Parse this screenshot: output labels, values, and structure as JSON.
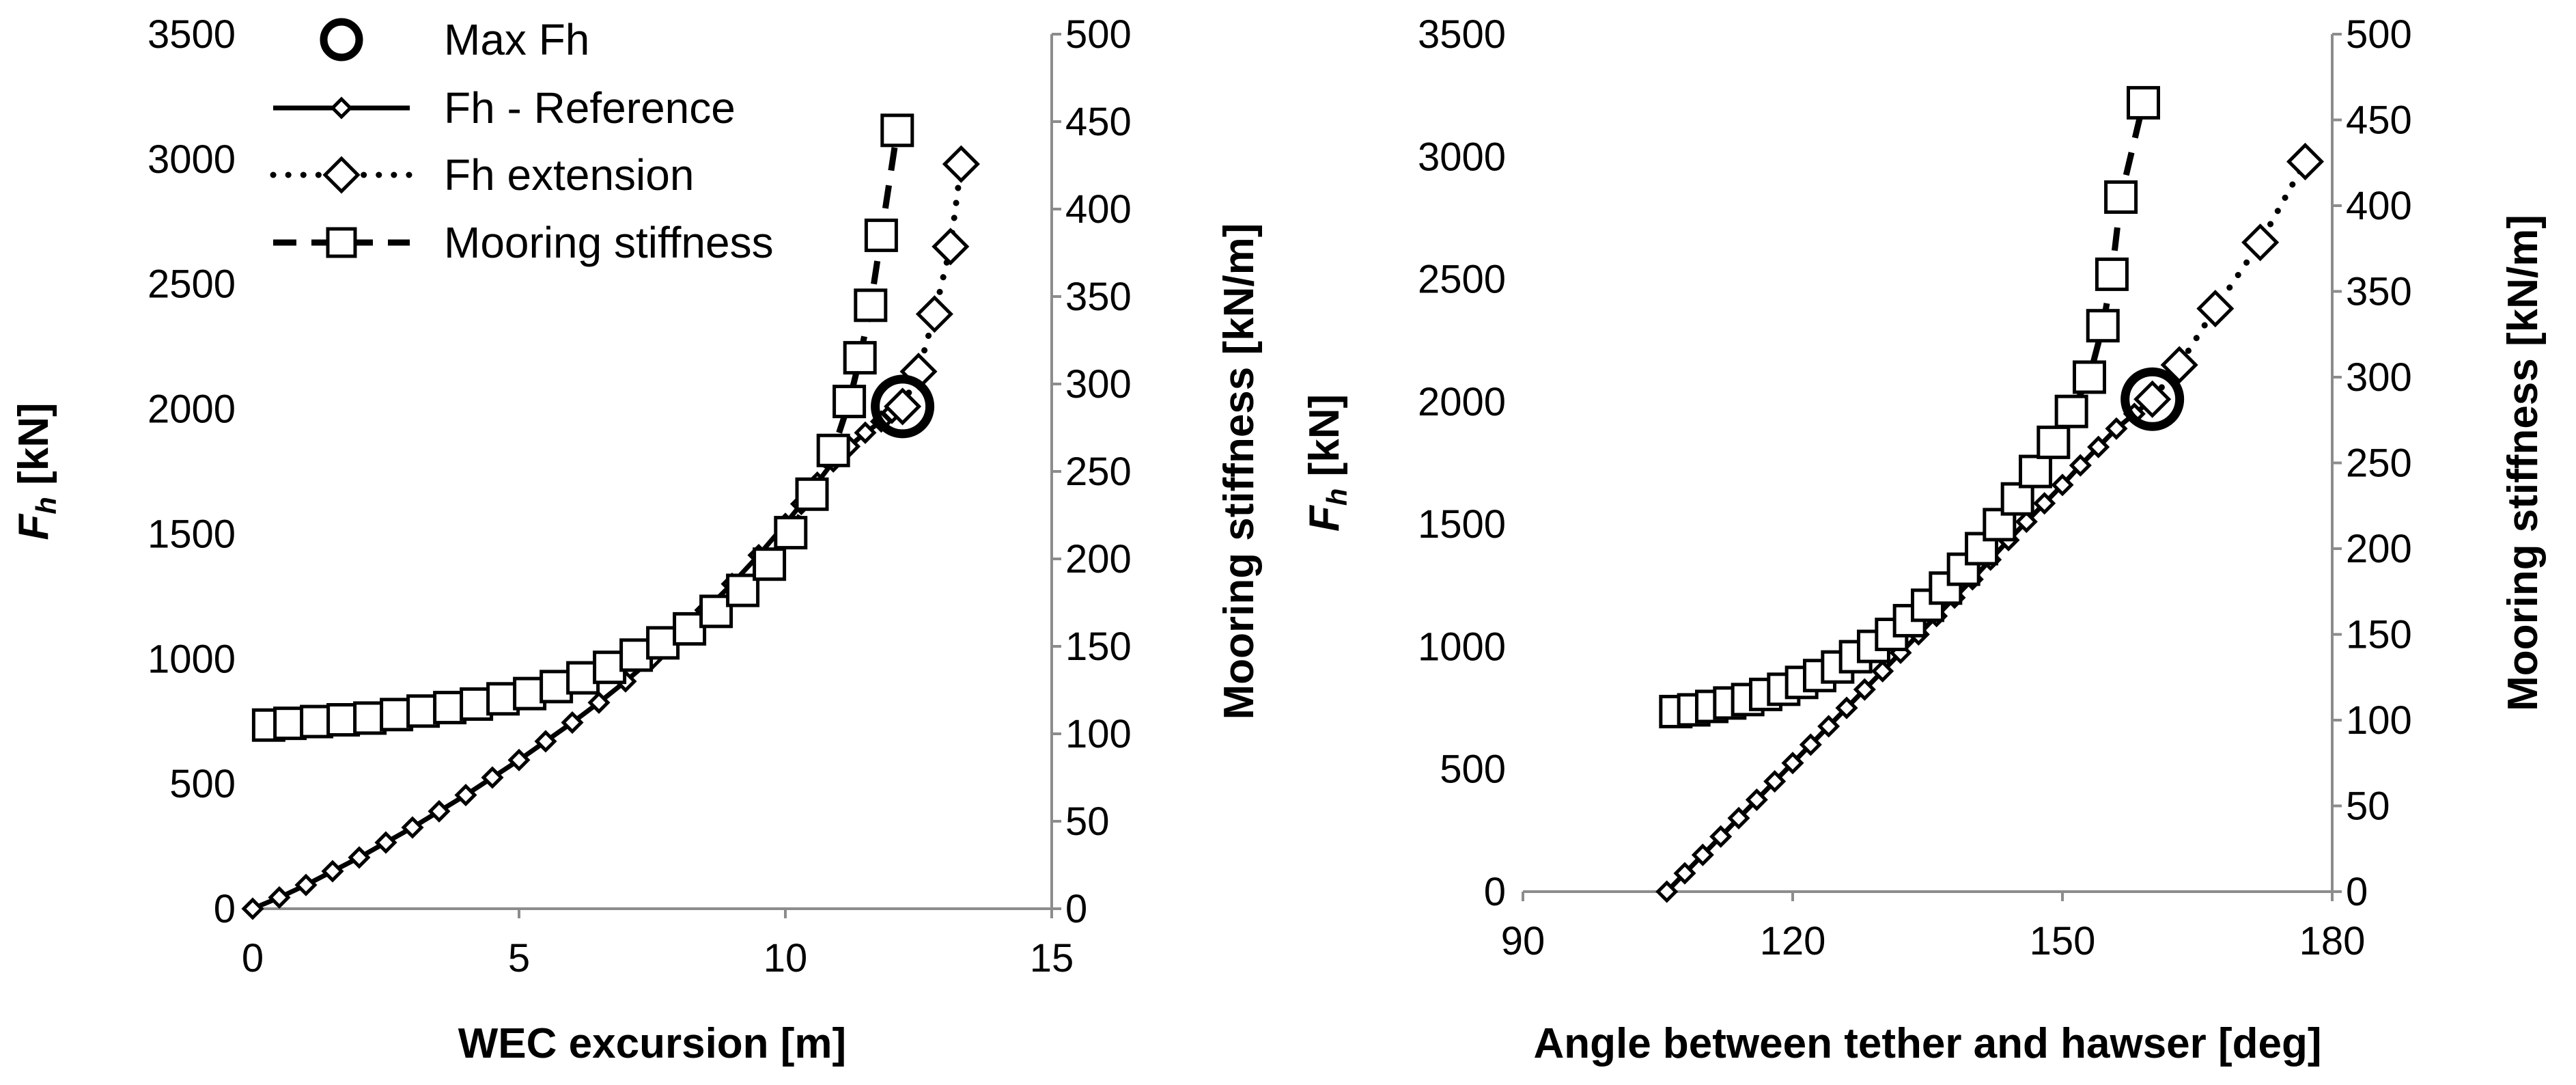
{
  "chart_data": [
    {
      "type": "line",
      "xlabel": "WEC excursion [m]",
      "ylabel": "F",
      "ylabel_sub": "h",
      "ylabel_unit": " [kN]",
      "y2label": "Mooring stiffness [kN/m]",
      "xlim": [
        0,
        15
      ],
      "ylim": [
        0,
        3500
      ],
      "y2lim": [
        0,
        500
      ],
      "xticks": [
        0,
        5,
        10,
        15
      ],
      "yticks": [
        0,
        500,
        1000,
        1500,
        2000,
        2500,
        3000,
        3500
      ],
      "y2ticks": [
        0,
        50,
        100,
        150,
        200,
        250,
        300,
        350,
        400,
        450,
        500
      ],
      "legend": {
        "position": "top-left",
        "entries": [
          "Max Fh",
          "Fh - Reference",
          "Fh extension",
          "Mooring stiffness"
        ]
      },
      "series": [
        {
          "name": "Fh - Reference",
          "axis": "left",
          "x": [
            0,
            0.5,
            1.0,
            1.5,
            2.0,
            2.5,
            3.0,
            3.5,
            4.0,
            4.5,
            5.0,
            5.5,
            6.0,
            6.5,
            7.0,
            7.5,
            8.0,
            8.5,
            9.0,
            9.5,
            10.0,
            10.3,
            10.6,
            10.9,
            11.2,
            11.5,
            11.8,
            12.0,
            12.2
          ],
          "y": [
            0,
            45,
            95,
            150,
            205,
            265,
            325,
            390,
            455,
            525,
            595,
            670,
            745,
            825,
            910,
            1000,
            1095,
            1195,
            1300,
            1415,
            1540,
            1620,
            1705,
            1790,
            1850,
            1905,
            1950,
            1985,
            2010
          ]
        },
        {
          "name": "Fh extension",
          "axis": "left",
          "x": [
            12.2,
            12.5,
            12.8,
            13.1,
            13.3
          ],
          "y": [
            2010,
            2150,
            2380,
            2650,
            2980
          ]
        },
        {
          "name": "Mooring stiffness",
          "axis": "right",
          "x": [
            0.3,
            0.7,
            1.2,
            1.7,
            2.2,
            2.7,
            3.2,
            3.7,
            4.2,
            4.7,
            5.2,
            5.7,
            6.2,
            6.7,
            7.2,
            7.7,
            8.2,
            8.7,
            9.2,
            9.7,
            10.1,
            10.5,
            10.9,
            11.2,
            11.4,
            11.6,
            11.8,
            12.1
          ],
          "y": [
            105,
            106,
            107,
            108,
            109,
            111,
            113,
            115,
            117,
            120,
            123,
            127,
            132,
            138,
            145,
            152,
            160,
            170,
            182,
            197,
            215,
            237,
            262,
            290,
            315,
            345,
            385,
            445
          ]
        },
        {
          "name": "Max Fh",
          "axis": "left",
          "x": [
            12.2
          ],
          "y": [
            2010
          ]
        }
      ]
    },
    {
      "type": "line",
      "xlabel": "Angle between tether and hawser [deg]",
      "ylabel": "F",
      "ylabel_sub": "h",
      "ylabel_unit": " [kN]",
      "y2label": "Mooring stiffness [kN/m]",
      "xlim": [
        90,
        180
      ],
      "ylim": [
        0,
        3500
      ],
      "y2lim": [
        0,
        500
      ],
      "xticks": [
        90,
        120,
        150,
        180
      ],
      "yticks": [
        0,
        500,
        1000,
        1500,
        2000,
        2500,
        3000,
        3500
      ],
      "y2ticks": [
        0,
        50,
        100,
        150,
        200,
        250,
        300,
        350,
        400,
        450,
        500
      ],
      "series": [
        {
          "name": "Fh - Reference",
          "axis": "left",
          "x": [
            106,
            108,
            110,
            112,
            114,
            116,
            118,
            120,
            122,
            124,
            126,
            128,
            130,
            132,
            134,
            136,
            138,
            140,
            142,
            144,
            146,
            148,
            150,
            152,
            154,
            156,
            158,
            160
          ],
          "y": [
            0,
            75,
            150,
            225,
            300,
            375,
            450,
            525,
            600,
            675,
            750,
            825,
            900,
            975,
            1050,
            1125,
            1200,
            1275,
            1355,
            1435,
            1510,
            1585,
            1660,
            1740,
            1815,
            1890,
            1950,
            2010
          ]
        },
        {
          "name": "Fh extension",
          "axis": "left",
          "x": [
            160,
            163,
            167,
            172,
            177
          ],
          "y": [
            2010,
            2150,
            2380,
            2650,
            2980
          ]
        },
        {
          "name": "Mooring stiffness",
          "axis": "right",
          "x": [
            107,
            109,
            111,
            113,
            115,
            117,
            119,
            121,
            123,
            125,
            127,
            129,
            131,
            133,
            135,
            137,
            139,
            141,
            143,
            145,
            147,
            149,
            151,
            153,
            154.5,
            155.5,
            156.5,
            159
          ],
          "y": [
            105,
            106,
            108,
            110,
            112,
            115,
            118,
            122,
            126,
            131,
            137,
            143,
            150,
            158,
            167,
            177,
            188,
            200,
            214,
            229,
            245,
            262,
            280,
            300,
            330,
            360,
            405,
            460
          ]
        },
        {
          "name": "Max Fh",
          "axis": "left",
          "x": [
            160
          ],
          "y": [
            2010
          ]
        }
      ]
    }
  ]
}
